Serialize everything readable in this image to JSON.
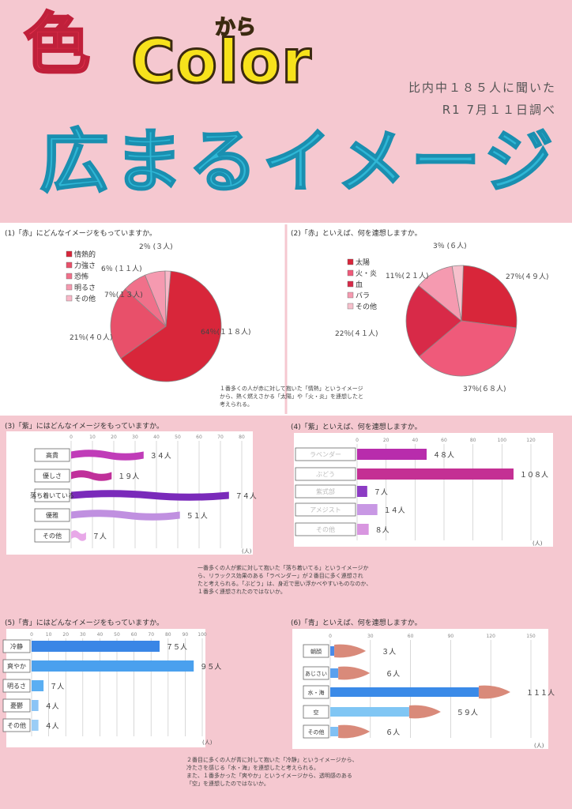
{
  "header": {
    "iro": "色",
    "kara": "から",
    "color": "Color",
    "survey_line1": "比内中１８５人に聞いた",
    "survey_line2": "R1 7月１１日調べ",
    "main_title": "広まるイメージ"
  },
  "notes": {
    "red": [
      "１番多くの人が赤に対して抱いた「情熱」というイメージ",
      "から、熱く燃えさかる「太陽」や「火・炎」を連想したと",
      "考えられる。"
    ],
    "purple": [
      "一番多くの人が紫に対して抱いた「落ち着いてる」というイメージか",
      "ら、リラックス効果のある「ラベンダー」が２番目に多く連想され",
      "たと考えられる。「ぶどう」は、身近で思い浮かべやすいものなのか、",
      "１番多く連想されたのではないか。"
    ],
    "blue": [
      "２番目に多くの人が青に対して抱いた「冷静」というイメージから、",
      "冷たさを感じる「水・海」を連想したと考えられる。",
      "また、１番多かった「爽やか」というイメージから、透明感のある",
      "「空」を連想したのではないか。"
    ]
  },
  "colors": {
    "background": "#f5c8d0",
    "red_series": [
      "#d8263a",
      "#e8506a",
      "#f0708a",
      "#f59ab0",
      "#f8b8c8"
    ],
    "purple_series": [
      "#b836b0",
      "#c0309a",
      "#8e38c0",
      "#7a2aba",
      "#c090e0",
      "#e8a8e8"
    ],
    "blue_series": [
      "#3a8ae8",
      "#4aa0ee",
      "#6cb6f4",
      "#8ac8f8"
    ],
    "brush_tip": "#d98a7a"
  },
  "chart_data": [
    {
      "id": "q1",
      "type": "pie",
      "title": "(1)「赤」にどんなイメージをもっていますか。",
      "legend": [
        "情熱的",
        "力強さ",
        "恐怖",
        "明るさ",
        "その他"
      ],
      "slices": [
        {
          "name": "情熱的",
          "value": 118,
          "percent": 64,
          "label": "64％(１１８人)"
        },
        {
          "name": "力強さ",
          "value": 40,
          "percent": 21,
          "label": "21％(４０人)"
        },
        {
          "name": "恐怖",
          "value": 13,
          "percent": 7,
          "label": "7％(１３人)"
        },
        {
          "name": "明るさ",
          "value": 11,
          "percent": 6,
          "label": "6％ (１１人)"
        },
        {
          "name": "その他",
          "value": 3,
          "percent": 2,
          "label": "2％ (３人)"
        }
      ]
    },
    {
      "id": "q2",
      "type": "pie",
      "title": "(2)「赤」といえば、何を連想しますか。",
      "legend": [
        "太陽",
        "火・炎",
        "血",
        "バラ",
        "その他"
      ],
      "slices": [
        {
          "name": "太陽",
          "value": 49,
          "percent": 27,
          "label": "27％(４９人)"
        },
        {
          "name": "火・炎",
          "value": 68,
          "percent": 37,
          "label": "37％(６８人)"
        },
        {
          "name": "血",
          "value": 41,
          "percent": 22,
          "label": "22％(４１人)"
        },
        {
          "name": "バラ",
          "value": 21,
          "percent": 11,
          "label": "11％(２１人)"
        },
        {
          "name": "その他",
          "value": 6,
          "percent": 3,
          "label": "3％ (６人)"
        }
      ]
    },
    {
      "id": "q3",
      "type": "bar",
      "title": "(3)「紫」にはどんなイメージをもっていますか。",
      "categories": [
        "高貴",
        "優しさ",
        "落ち着いている",
        "優雅",
        "その他"
      ],
      "values": [
        34,
        19,
        74,
        51,
        7
      ],
      "value_labels": [
        "３４人",
        "１９人",
        "７４人",
        "５１人",
        "７人"
      ],
      "ticks": [
        0,
        10,
        20,
        30,
        40,
        50,
        60,
        70,
        80
      ],
      "xlim": [
        0,
        80
      ],
      "unit": "(人)"
    },
    {
      "id": "q4",
      "type": "bar",
      "title": "(4)「紫」といえば、何を連想しますか。",
      "categories": [
        "ラベンダー",
        "ぶどう",
        "紫式部",
        "アメジスト",
        "その他"
      ],
      "values": [
        48,
        108,
        7,
        14,
        8
      ],
      "value_labels": [
        "４８人",
        "１０８人",
        "７人",
        "１４人",
        "８人"
      ],
      "ticks": [
        0,
        20,
        40,
        60,
        80,
        100,
        120
      ],
      "xlim": [
        0,
        120
      ],
      "unit": "(人)"
    },
    {
      "id": "q5",
      "type": "bar",
      "title": "(5)「青」にはどんなイメージをもっていますか。",
      "categories": [
        "冷静",
        "爽やか",
        "明るさ",
        "憂鬱",
        "その他"
      ],
      "values": [
        75,
        95,
        7,
        4,
        4
      ],
      "value_labels": [
        "７５人",
        "９５人",
        "７人",
        "４人",
        "４人"
      ],
      "ticks": [
        0,
        10,
        20,
        30,
        40,
        50,
        60,
        70,
        80,
        90,
        100
      ],
      "xlim": [
        0,
        100
      ],
      "unit": "(人)"
    },
    {
      "id": "q6",
      "type": "bar",
      "title": "(6)「青」といえば、何を連想しますか。",
      "categories": [
        "朝顔",
        "あじさい",
        "水・海",
        "空",
        "その他"
      ],
      "values": [
        3,
        6,
        111,
        59,
        6
      ],
      "value_labels": [
        "３人",
        "６人",
        "１１１人",
        "５９人",
        "６人"
      ],
      "ticks": [
        0,
        30,
        60,
        90,
        120,
        150
      ],
      "xlim": [
        0,
        150
      ],
      "unit": "(人)"
    }
  ]
}
